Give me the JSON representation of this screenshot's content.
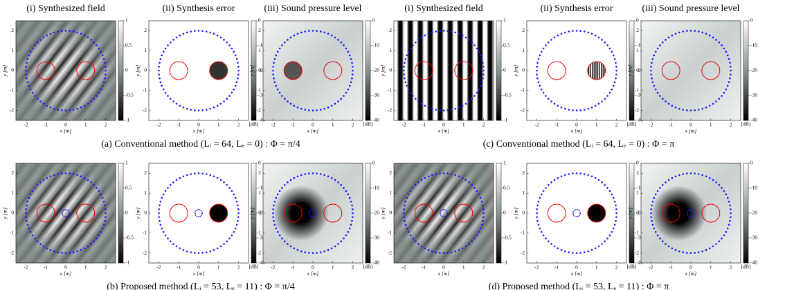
{
  "column_headers": [
    "(i) Synthesized field",
    "(ii) Synthesis error",
    "(iii) Sound pressure level"
  ],
  "x_label": "x [m]",
  "y_label": "y [m]",
  "xlim": [
    -2.5,
    2.5
  ],
  "ylim": [
    -2.5,
    2.5
  ],
  "xticks": [
    -2,
    -1,
    0,
    1,
    2
  ],
  "yticks": [
    -2,
    -1,
    0,
    1,
    2
  ],
  "colorbars": [
    {
      "lim": [
        -1,
        1
      ],
      "ticks": [
        -1,
        -0.5,
        0,
        0.5,
        1
      ]
    },
    {
      "lim": [
        -40,
        0
      ],
      "ticks": [
        0,
        -10,
        -20,
        -30,
        -40
      ],
      "unit": "[dB]"
    }
  ],
  "subfigures": [
    {
      "caption": "(a) Conventional method (Lᵢ = 64, Lₑ = 0) : Φ = π/4"
    },
    {
      "caption": "(b) Proposed method (Lᵢ = 53, Lₑ = 11) : Φ = π/4"
    },
    {
      "caption": "(c) Conventional method (Lᵢ = 64, Lₑ = 0) : Φ = π"
    },
    {
      "caption": "(d) Proposed method (Lᵢ = 53, Lₑ = 11) : Φ = π"
    }
  ]
}
